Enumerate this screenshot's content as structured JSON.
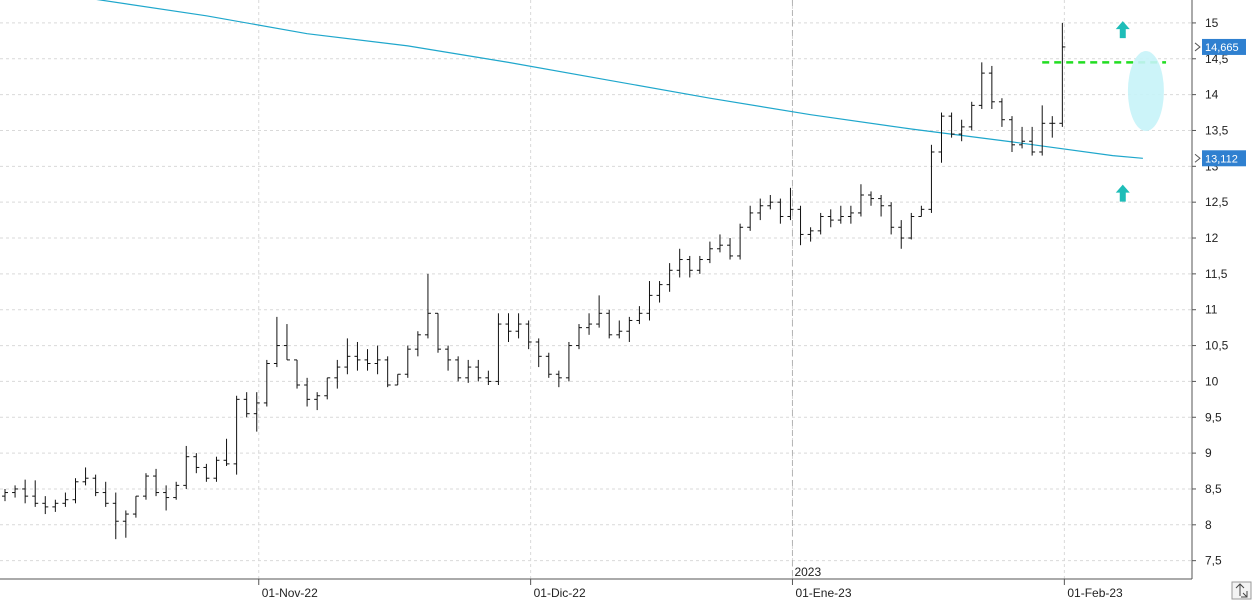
{
  "chart_data": {
    "type": "ohlc",
    "ylim": [
      7.3,
      15.25
    ],
    "y_ticks": [
      7.5,
      8,
      8.5,
      9,
      9.5,
      10,
      10.5,
      11,
      11.5,
      12,
      12.5,
      13,
      13.5,
      14,
      14.5,
      15
    ],
    "y_tick_labels": [
      "7,5",
      "8",
      "8,5",
      "9",
      "9,5",
      "10",
      "10,5",
      "11",
      "11,5",
      "12",
      "12,5",
      "13",
      "13,5",
      "14",
      "14,5",
      "15"
    ],
    "x_tick_labels": [
      "01-Nov-22",
      "01-Dic-22",
      "01-Ene-23",
      "01-Feb-23"
    ],
    "x_tick_bar_index": [
      25,
      52,
      78,
      105
    ],
    "year_label": "2023",
    "year_bar_index": 78,
    "grid": true,
    "bars": [
      [
        8.4,
        8.5,
        8.33,
        8.45
      ],
      [
        8.45,
        8.55,
        8.38,
        8.5
      ],
      [
        8.5,
        8.63,
        8.3,
        8.4
      ],
      [
        8.4,
        8.62,
        8.25,
        8.3
      ],
      [
        8.3,
        8.4,
        8.15,
        8.25
      ],
      [
        8.25,
        8.35,
        8.18,
        8.3
      ],
      [
        8.3,
        8.45,
        8.25,
        8.35
      ],
      [
        8.35,
        8.65,
        8.3,
        8.6
      ],
      [
        8.6,
        8.8,
        8.55,
        8.65
      ],
      [
        8.65,
        8.7,
        8.4,
        8.45
      ],
      [
        8.45,
        8.6,
        8.25,
        8.3
      ],
      [
        8.3,
        8.45,
        7.8,
        8.05
      ],
      [
        8.05,
        8.2,
        7.82,
        8.15
      ],
      [
        8.15,
        8.4,
        8.1,
        8.4
      ],
      [
        8.4,
        8.72,
        8.35,
        8.68
      ],
      [
        8.68,
        8.78,
        8.4,
        8.45
      ],
      [
        8.45,
        8.55,
        8.2,
        8.38
      ],
      [
        8.38,
        8.6,
        8.35,
        8.55
      ],
      [
        8.55,
        9.1,
        8.5,
        8.95
      ],
      [
        8.95,
        9.0,
        8.72,
        8.8
      ],
      [
        8.8,
        8.85,
        8.6,
        8.65
      ],
      [
        8.65,
        8.95,
        8.6,
        8.9
      ],
      [
        8.9,
        9.2,
        8.82,
        8.85
      ],
      [
        8.85,
        9.8,
        8.7,
        9.75
      ],
      [
        9.75,
        9.85,
        9.5,
        9.55
      ],
      [
        9.55,
        9.85,
        9.3,
        9.7
      ],
      [
        9.7,
        10.3,
        9.65,
        10.25
      ],
      [
        10.25,
        10.9,
        10.2,
        10.5
      ],
      [
        10.5,
        10.8,
        10.3,
        10.3
      ],
      [
        10.3,
        10.3,
        9.9,
        9.95
      ],
      [
        9.95,
        10.05,
        9.65,
        9.75
      ],
      [
        9.75,
        9.85,
        9.6,
        9.8
      ],
      [
        9.8,
        10.05,
        9.75,
        10.05
      ],
      [
        10.05,
        10.3,
        9.9,
        10.2
      ],
      [
        10.2,
        10.6,
        10.1,
        10.35
      ],
      [
        10.35,
        10.55,
        10.15,
        10.3
      ],
      [
        10.3,
        10.45,
        10.15,
        10.25
      ],
      [
        10.25,
        10.5,
        10.1,
        10.3
      ],
      [
        10.3,
        10.35,
        9.92,
        9.95
      ],
      [
        9.95,
        10.1,
        9.95,
        10.1
      ],
      [
        10.1,
        10.5,
        10.05,
        10.45
      ],
      [
        10.45,
        10.7,
        10.35,
        10.65
      ],
      [
        10.65,
        11.5,
        10.6,
        10.95
      ],
      [
        10.95,
        10.95,
        10.4,
        10.45
      ],
      [
        10.45,
        10.5,
        10.15,
        10.3
      ],
      [
        10.3,
        10.35,
        10.0,
        10.05
      ],
      [
        10.05,
        10.3,
        9.98,
        10.2
      ],
      [
        10.2,
        10.3,
        10.0,
        10.05
      ],
      [
        10.05,
        10.15,
        9.95,
        10.0
      ],
      [
        10.0,
        10.95,
        9.95,
        10.8
      ],
      [
        10.8,
        10.95,
        10.55,
        10.7
      ],
      [
        10.7,
        10.95,
        10.6,
        10.8
      ],
      [
        10.8,
        10.85,
        10.45,
        10.55
      ],
      [
        10.55,
        10.6,
        10.2,
        10.35
      ],
      [
        10.35,
        10.4,
        10.05,
        10.1
      ],
      [
        10.1,
        10.15,
        9.92,
        10.05
      ],
      [
        10.05,
        10.55,
        10.0,
        10.5
      ],
      [
        10.5,
        10.8,
        10.45,
        10.75
      ],
      [
        10.75,
        10.95,
        10.65,
        10.8
      ],
      [
        10.8,
        11.2,
        10.75,
        10.95
      ],
      [
        10.95,
        11.0,
        10.6,
        10.65
      ],
      [
        10.65,
        10.85,
        10.6,
        10.7
      ],
      [
        10.7,
        10.9,
        10.55,
        10.85
      ],
      [
        10.85,
        11.05,
        10.8,
        10.95
      ],
      [
        10.95,
        11.4,
        10.85,
        11.2
      ],
      [
        11.2,
        11.4,
        11.1,
        11.35
      ],
      [
        11.35,
        11.65,
        11.25,
        11.55
      ],
      [
        11.55,
        11.85,
        11.45,
        11.7
      ],
      [
        11.7,
        11.75,
        11.45,
        11.55
      ],
      [
        11.55,
        11.75,
        11.5,
        11.7
      ],
      [
        11.7,
        11.95,
        11.65,
        11.85
      ],
      [
        11.85,
        12.05,
        11.8,
        11.9
      ],
      [
        11.9,
        12.0,
        11.7,
        11.75
      ],
      [
        11.75,
        12.2,
        11.7,
        12.15
      ],
      [
        12.15,
        12.45,
        12.1,
        12.35
      ],
      [
        12.35,
        12.55,
        12.25,
        12.45
      ],
      [
        12.45,
        12.6,
        12.4,
        12.5
      ],
      [
        12.5,
        12.55,
        12.2,
        12.3
      ],
      [
        12.3,
        12.7,
        12.25,
        12.4
      ],
      [
        12.4,
        12.45,
        11.9,
        12.05
      ],
      [
        12.05,
        12.15,
        11.95,
        12.1
      ],
      [
        12.1,
        12.35,
        12.05,
        12.3
      ],
      [
        12.3,
        12.4,
        12.15,
        12.25
      ],
      [
        12.25,
        12.45,
        12.2,
        12.3
      ],
      [
        12.3,
        12.45,
        12.2,
        12.35
      ],
      [
        12.35,
        12.75,
        12.3,
        12.6
      ],
      [
        12.6,
        12.65,
        12.45,
        12.55
      ],
      [
        12.55,
        12.6,
        12.3,
        12.45
      ],
      [
        12.45,
        12.5,
        12.05,
        12.15
      ],
      [
        12.15,
        12.25,
        11.85,
        12.0
      ],
      [
        12.0,
        12.35,
        11.98,
        12.3
      ],
      [
        12.3,
        12.45,
        12.3,
        12.4
      ],
      [
        12.4,
        13.3,
        12.35,
        13.2
      ],
      [
        13.2,
        13.75,
        13.05,
        13.7
      ],
      [
        13.7,
        13.75,
        13.4,
        13.45
      ],
      [
        13.45,
        13.65,
        13.35,
        13.55
      ],
      [
        13.55,
        13.9,
        13.5,
        13.85
      ],
      [
        13.85,
        14.45,
        13.8,
        14.3
      ],
      [
        14.3,
        14.4,
        13.8,
        13.9
      ],
      [
        13.9,
        13.95,
        13.55,
        13.65
      ],
      [
        13.65,
        13.7,
        13.2,
        13.3
      ],
      [
        13.3,
        13.55,
        13.25,
        13.35
      ],
      [
        13.35,
        13.55,
        13.15,
        13.2
      ],
      [
        13.2,
        13.85,
        13.15,
        13.6
      ],
      [
        13.6,
        13.7,
        13.4,
        13.6
      ],
      [
        13.6,
        15.0,
        13.55,
        14.665
      ]
    ],
    "ma": {
      "color": "#1fa7cc",
      "points": [
        [
          8,
          15.35
        ],
        [
          20,
          15.1
        ],
        [
          30,
          14.85
        ],
        [
          40,
          14.68
        ],
        [
          50,
          14.45
        ],
        [
          60,
          14.2
        ],
        [
          70,
          13.95
        ],
        [
          80,
          13.72
        ],
        [
          90,
          13.52
        ],
        [
          100,
          13.34
        ],
        [
          110,
          13.15
        ],
        [
          113,
          13.112
        ]
      ],
      "value_label": "13,112"
    },
    "last_price_label": "14,665",
    "resistance": {
      "value": 14.45,
      "from_bar": 103,
      "to_bar": 115,
      "color": "#22dd22"
    },
    "annotations": {
      "arrow_up_color": "#1ebdb8",
      "arrows": [
        {
          "bar": 111,
          "value": 14.9
        },
        {
          "bar": 111,
          "value": 12.62
        }
      ],
      "ellipse": {
        "bar": 113,
        "value": 14.05,
        "color": "#c6f3f8"
      }
    },
    "badge_color": "#2f80d0",
    "bar_color": "#111111"
  },
  "toolbar": {
    "corner_icon": "expand-arrows-icon"
  }
}
